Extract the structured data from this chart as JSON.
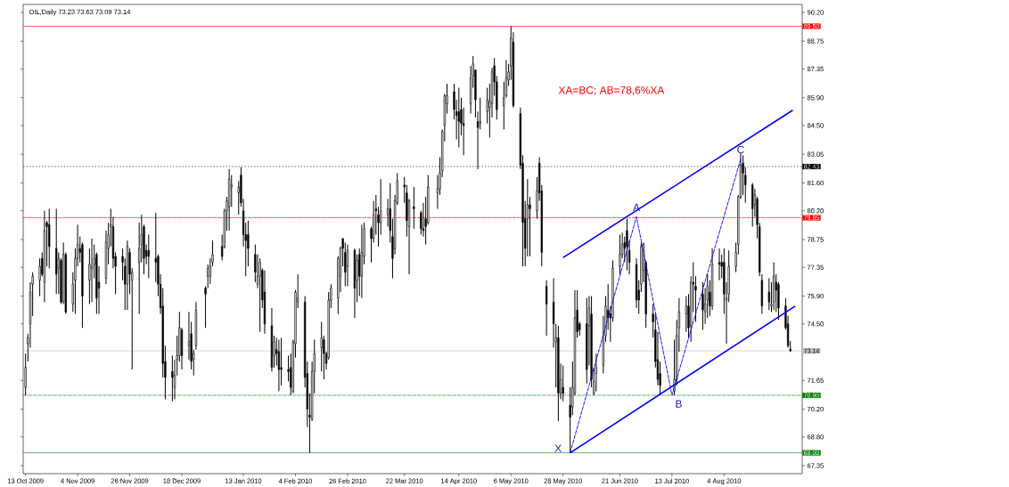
{
  "chart_data": {
    "type": "candlestick",
    "title": "OIL,Daily 73.23 73.63 73.09 73.14",
    "x": [
      "2009-10-13",
      "2009-10-14",
      "2009-10-15",
      "2009-10-16",
      "2009-10-19",
      "2009-10-20",
      "2009-10-21",
      "2009-10-22",
      "2009-10-23",
      "2009-10-26",
      "2009-10-27",
      "2009-10-28",
      "2009-10-29",
      "2009-10-30",
      "2009-11-02",
      "2009-11-03",
      "2009-11-04",
      "2009-11-05",
      "2009-11-06",
      "2009-11-09",
      "2009-11-10",
      "2009-11-11",
      "2009-11-12",
      "2009-11-13",
      "2009-11-16",
      "2009-11-17",
      "2009-11-18",
      "2009-11-19",
      "2009-11-20",
      "2009-11-23",
      "2009-11-24",
      "2009-11-25",
      "2009-11-26",
      "2009-11-27",
      "2009-11-30",
      "2009-12-01",
      "2009-12-02",
      "2009-12-03",
      "2009-12-04",
      "2009-12-07",
      "2009-12-08",
      "2009-12-09",
      "2009-12-10",
      "2009-12-11",
      "2009-12-14",
      "2009-12-15",
      "2009-12-16",
      "2009-12-17",
      "2009-12-18",
      "2009-12-21",
      "2009-12-22",
      "2009-12-23",
      "2009-12-24",
      "2009-12-28",
      "2009-12-29",
      "2009-12-30",
      "2009-12-31",
      "2010-01-04",
      "2010-01-05",
      "2010-01-06",
      "2010-01-07",
      "2010-01-08",
      "2010-01-11",
      "2010-01-12",
      "2010-01-13",
      "2010-01-14",
      "2010-01-15",
      "2010-01-18",
      "2010-01-19",
      "2010-01-20",
      "2010-01-21",
      "2010-01-22",
      "2010-01-25",
      "2010-01-26",
      "2010-01-27",
      "2010-01-28",
      "2010-01-29",
      "2010-02-01",
      "2010-02-02",
      "2010-02-03",
      "2010-02-04",
      "2010-02-05",
      "2010-02-08",
      "2010-02-09",
      "2010-02-10",
      "2010-02-11",
      "2010-02-12",
      "2010-02-15",
      "2010-02-16",
      "2010-02-17",
      "2010-02-18",
      "2010-02-19",
      "2010-02-22",
      "2010-02-23",
      "2010-02-24",
      "2010-02-25",
      "2010-02-26",
      "2010-03-01",
      "2010-03-02",
      "2010-03-03",
      "2010-03-04",
      "2010-03-05",
      "2010-03-08",
      "2010-03-09",
      "2010-03-10",
      "2010-03-11",
      "2010-03-12",
      "2010-03-15",
      "2010-03-16",
      "2010-03-17",
      "2010-03-18",
      "2010-03-19",
      "2010-03-22",
      "2010-03-23",
      "2010-03-24",
      "2010-03-26",
      "2010-03-29",
      "2010-03-30",
      "2010-03-31",
      "2010-04-01",
      "2010-04-05",
      "2010-04-06",
      "2010-04-07",
      "2010-04-08",
      "2010-04-09",
      "2010-04-12",
      "2010-04-13",
      "2010-04-14",
      "2010-04-15",
      "2010-04-16",
      "2010-04-19",
      "2010-04-20",
      "2010-04-21",
      "2010-04-22",
      "2010-04-23",
      "2010-04-26",
      "2010-04-27",
      "2010-04-28",
      "2010-04-29",
      "2010-04-30",
      "2010-05-03",
      "2010-05-04",
      "2010-05-05",
      "2010-05-06",
      "2010-05-07",
      "2010-05-10",
      "2010-05-11",
      "2010-05-12",
      "2010-05-13",
      "2010-05-14",
      "2010-05-17",
      "2010-05-18",
      "2010-05-19",
      "2010-05-21",
      "2010-05-24",
      "2010-05-25",
      "2010-05-26",
      "2010-05-27",
      "2010-05-28",
      "2010-05-31",
      "2010-06-01",
      "2010-06-02",
      "2010-06-03",
      "2010-06-04",
      "2010-06-07",
      "2010-06-08",
      "2010-06-09",
      "2010-06-10",
      "2010-06-11",
      "2010-06-14",
      "2010-06-15",
      "2010-06-16",
      "2010-06-17",
      "2010-06-18",
      "2010-06-21",
      "2010-06-22",
      "2010-06-23",
      "2010-06-24",
      "2010-06-25",
      "2010-06-28",
      "2010-06-29",
      "2010-06-30",
      "2010-07-01",
      "2010-07-02",
      "2010-07-05",
      "2010-07-06",
      "2010-07-07",
      "2010-07-08",
      "2010-07-14",
      "2010-07-15",
      "2010-07-16",
      "2010-07-19",
      "2010-07-20",
      "2010-07-21",
      "2010-07-22",
      "2010-07-23",
      "2010-07-26",
      "2010-07-27",
      "2010-07-28",
      "2010-07-29",
      "2010-07-30",
      "2010-08-02",
      "2010-08-03",
      "2010-08-04",
      "2010-08-05",
      "2010-08-06",
      "2010-08-09",
      "2010-08-10",
      "2010-08-11",
      "2010-08-12",
      "2010-08-13",
      "2010-08-16",
      "2010-08-17",
      "2010-08-18",
      "2010-08-19",
      "2010-08-20",
      "2010-08-23",
      "2010-08-24",
      "2010-08-25",
      "2010-08-26",
      "2010-08-27",
      "2010-08-30",
      "2010-08-31",
      "2010-09-01"
    ],
    "ohlc": [
      [
        71.3,
        73.0,
        70.9,
        72.3
      ],
      [
        73.5,
        74.0,
        72.6,
        73.8
      ],
      [
        74.5,
        76.6,
        73.3,
        76.1
      ],
      [
        76.5,
        77.1,
        74.9,
        76.9
      ],
      [
        76.7,
        77.8,
        75.9,
        77.4
      ],
      [
        77.8,
        78.1,
        76.9,
        77.0
      ],
      [
        76.6,
        80.2,
        75.6,
        79.2
      ],
      [
        79.6,
        79.7,
        77.4,
        79.4
      ],
      [
        79.5,
        80.3,
        77.3,
        78.4
      ],
      [
        78.3,
        80.3,
        76.0,
        77.0
      ],
      [
        77.3,
        78.1,
        76.0,
        77.8
      ],
      [
        77.7,
        77.8,
        75.5,
        75.6
      ],
      [
        75.6,
        78.6,
        75.5,
        78.0
      ],
      [
        78.0,
        78.1,
        75.0,
        75.1
      ],
      [
        75.5,
        77.1,
        75.1,
        76.5
      ],
      [
        76.7,
        78.3,
        75.0,
        77.8
      ],
      [
        77.8,
        79.5,
        77.4,
        78.5
      ],
      [
        78.3,
        78.9,
        77.6,
        78.1
      ],
      [
        78.5,
        78.6,
        74.3,
        75.9
      ],
      [
        76.7,
        78.3,
        75.5,
        77.5
      ],
      [
        77.3,
        78.8,
        75.6,
        77.4
      ],
      [
        77.5,
        78.5,
        76.8,
        77.8
      ],
      [
        78.0,
        78.1,
        75.0,
        75.8
      ],
      [
        76.6,
        77.4,
        75.0,
        76.3
      ],
      [
        76.8,
        79.2,
        76.5,
        78.6
      ],
      [
        78.3,
        79.6,
        77.5,
        79.0
      ],
      [
        79.4,
        80.3,
        78.4,
        79.5
      ],
      [
        79.4,
        79.9,
        77.3,
        77.8
      ],
      [
        77.9,
        78.1,
        76.0,
        77.4
      ],
      [
        77.9,
        78.3,
        76.7,
        77.6
      ],
      [
        77.4,
        77.8,
        75.2,
        76.5
      ],
      [
        76.5,
        78.7,
        75.2,
        78.4
      ],
      [
        78.1,
        78.3,
        76.0,
        77.0
      ],
      [
        76.7,
        77.3,
        72.2,
        77.1
      ],
      [
        77.6,
        79.6,
        75.0,
        78.3
      ],
      [
        78.5,
        80.0,
        77.6,
        79.0
      ],
      [
        79.4,
        79.5,
        77.0,
        77.8
      ],
      [
        78.2,
        78.5,
        77.5,
        77.9
      ],
      [
        78.2,
        79.0,
        76.8,
        77.9
      ],
      [
        77.8,
        80.1,
        76.6,
        77.6
      ],
      [
        77.9,
        78.0,
        75.9,
        76.5
      ],
      [
        76.5,
        77.0,
        75.0,
        75.3
      ],
      [
        75.4,
        76.3,
        71.8,
        72.5
      ],
      [
        72.6,
        73.4,
        70.7,
        71.8
      ],
      [
        72.1,
        72.9,
        70.6,
        71.8
      ],
      [
        71.3,
        72.7,
        70.7,
        71.9
      ],
      [
        72.7,
        73.9,
        71.9,
        72.9
      ],
      [
        72.9,
        75.1,
        72.6,
        74.3
      ],
      [
        74.2,
        74.3,
        72.2,
        72.9
      ],
      [
        73.4,
        75.1,
        72.7,
        73.6
      ],
      [
        74.0,
        74.6,
        72.2,
        72.6
      ],
      [
        72.7,
        73.2,
        71.9,
        73.0
      ],
      [
        73.4,
        75.6,
        73.2,
        75.2
      ],
      [
        76.3,
        76.4,
        74.3,
        76.0
      ],
      [
        76.9,
        77.5,
        76.3,
        77.3
      ],
      [
        76.9,
        77.8,
        76.5,
        77.4
      ],
      [
        77.6,
        78.7,
        77.4,
        78.0
      ],
      [
        78.4,
        79.0,
        77.7,
        77.9
      ],
      [
        78.4,
        80.3,
        78.3,
        80.2
      ],
      [
        80.2,
        80.9,
        79.2,
        80.7
      ],
      [
        80.4,
        82.3,
        79.2,
        81.8
      ],
      [
        81.4,
        82.0,
        80.4,
        81.5
      ],
      [
        81.1,
        81.7,
        80.0,
        81.4
      ],
      [
        82.0,
        82.4,
        80.4,
        80.6
      ],
      [
        80.2,
        80.8,
        78.4,
        79.0
      ],
      [
        79.0,
        79.6,
        76.9,
        78.7
      ],
      [
        79.0,
        79.7,
        77.4,
        78.3
      ],
      [
        78.0,
        78.5,
        76.6,
        77.1
      ],
      [
        76.5,
        78.0,
        76.3,
        76.9
      ],
      [
        76.9,
        77.8,
        74.1,
        77.6
      ],
      [
        77.2,
        77.3,
        75.3,
        75.7
      ],
      [
        76.1,
        77.2,
        74.0,
        74.5
      ],
      [
        74.4,
        75.3,
        72.1,
        72.3
      ],
      [
        72.9,
        73.9,
        72.3,
        73.6
      ],
      [
        73.2,
        73.8,
        72.4,
        73.0
      ],
      [
        73.1,
        73.7,
        71.1,
        72.2
      ],
      [
        72.3,
        73.8,
        71.4,
        72.2
      ],
      [
        72.2,
        72.9,
        71.6,
        72.1
      ],
      [
        72.3,
        73.0,
        70.9,
        71.3
      ],
      [
        71.1,
        73.7,
        71.0,
        73.6
      ],
      [
        73.5,
        76.2,
        72.8,
        76.1
      ],
      [
        75.6,
        77.0,
        75.3,
        75.8
      ],
      [
        75.6,
        75.9,
        71.3,
        71.8
      ],
      [
        72.0,
        72.6,
        69.3,
        70.2
      ],
      [
        69.9,
        71.0,
        68.0,
        69.8
      ],
      [
        69.7,
        72.6,
        69.6,
        72.1
      ],
      [
        72.1,
        73.7,
        71.0,
        73.0
      ],
      [
        73.3,
        74.6,
        72.1,
        73.8
      ],
      [
        73.7,
        73.9,
        71.7,
        73.0
      ],
      [
        73.0,
        73.1,
        72.2,
        72.5
      ],
      [
        72.8,
        76.1,
        72.7,
        75.7
      ],
      [
        75.7,
        76.5,
        75.3,
        76.3
      ],
      [
        75.8,
        77.9,
        75.0,
        77.8
      ],
      [
        76.9,
        78.4,
        76.1,
        78.3
      ],
      [
        78.8,
        78.8,
        77.4,
        78.3
      ],
      [
        78.1,
        78.6,
        76.4,
        77.1
      ],
      [
        77.4,
        78.5,
        76.4,
        78.2
      ],
      [
        78.2,
        78.3,
        74.8,
        76.3
      ],
      [
        76.7,
        78.0,
        75.6,
        77.7
      ],
      [
        78.0,
        78.3,
        75.9,
        76.9
      ],
      [
        76.9,
        79.5,
        75.8,
        78.1
      ],
      [
        77.9,
        79.6,
        77.5,
        79.3
      ],
      [
        79.3,
        79.4,
        77.6,
        78.8
      ],
      [
        78.8,
        80.7,
        78.6,
        80.0
      ],
      [
        80.3,
        81.0,
        79.0,
        80.2
      ],
      [
        80.0,
        80.4,
        78.4,
        79.6
      ],
      [
        79.6,
        81.8,
        79.0,
        80.2
      ],
      [
        80.0,
        80.8,
        79.4,
        80.3
      ],
      [
        80.3,
        81.6,
        78.6,
        79.2
      ],
      [
        78.9,
        79.8,
        76.8,
        77.8
      ],
      [
        78.3,
        81.0,
        78.0,
        80.7
      ],
      [
        80.6,
        82.1,
        80.5,
        81.7
      ],
      [
        81.5,
        81.9,
        80.6,
        81.4
      ],
      [
        81.1,
        81.5,
        78.9,
        79.7
      ],
      [
        79.4,
        80.8,
        77.0,
        80.7
      ],
      [
        80.4,
        81.4,
        79.3,
        80.3
      ],
      [
        80.1,
        80.2,
        79.0,
        79.3
      ],
      [
        79.3,
        80.6,
        78.9,
        79.2
      ],
      [
        79.8,
        80.9,
        78.5,
        79.4
      ],
      [
        79.6,
        82.0,
        79.5,
        81.4
      ],
      [
        81.1,
        82.0,
        80.3,
        81.3
      ],
      [
        81.3,
        82.9,
        81.0,
        82.1
      ],
      [
        82.2,
        84.3,
        81.9,
        84.2
      ],
      [
        84.5,
        86.1,
        83.7,
        86.0
      ],
      [
        85.6,
        86.6,
        85.1,
        86.0
      ],
      [
        86.2,
        86.6,
        84.8,
        85.3
      ],
      [
        85.2,
        85.8,
        83.8,
        85.0
      ],
      [
        85.2,
        86.4,
        83.4,
        84.7
      ],
      [
        85.3,
        85.9,
        84.0,
        84.6
      ],
      [
        84.6,
        85.4,
        83.0,
        84.5
      ],
      [
        85.6,
        87.5,
        85.1,
        86.9
      ],
      [
        87.0,
        88.0,
        86.4,
        87.6
      ],
      [
        87.3,
        87.3,
        84.9,
        85.8
      ],
      [
        84.7,
        85.2,
        82.3,
        84.4
      ],
      [
        84.6,
        85.9,
        84.3,
        84.7
      ],
      [
        85.2,
        86.4,
        84.6,
        85.8
      ],
      [
        85.4,
        86.6,
        83.9,
        85.7
      ],
      [
        85.6,
        87.4,
        84.9,
        87.2
      ],
      [
        87.5,
        87.9,
        86.0,
        86.7
      ],
      [
        86.7,
        87.0,
        84.8,
        85.3
      ],
      [
        85.5,
        86.7,
        84.3,
        85.9
      ],
      [
        86.0,
        87.8,
        85.9,
        86.9
      ],
      [
        86.8,
        87.6,
        86.5,
        87.2
      ],
      [
        87.5,
        89.5,
        86.8,
        88.9
      ],
      [
        88.7,
        89.2,
        85.4,
        85.5
      ],
      [
        85.1,
        85.4,
        82.3,
        82.5
      ],
      [
        82.6,
        83.0,
        77.4,
        79.6
      ],
      [
        79.8,
        80.7,
        77.4,
        78.3
      ],
      [
        79.8,
        81.8,
        77.9,
        80.5
      ],
      [
        80.5,
        80.9,
        77.9,
        80.3
      ],
      [
        80.2,
        81.9,
        79.8,
        81.2
      ],
      [
        82.6,
        82.9,
        80.7,
        81.1
      ],
      [
        81.2,
        81.5,
        77.4,
        78.1
      ],
      [
        76.4,
        76.7,
        73.9,
        75.5
      ],
      [
        75.6,
        76.8,
        73.3,
        74.5
      ],
      [
        73.6,
        74.5,
        71.3,
        73.8
      ],
      [
        73.8,
        74.4,
        69.6,
        71.0
      ],
      [
        71.0,
        72.5,
        70.7,
        71.7
      ],
      [
        71.3,
        72.4,
        70.6,
        71.0
      ],
      [
        70.4,
        71.3,
        68.0,
        69.8
      ],
      [
        70.3,
        72.6,
        69.9,
        71.3
      ],
      [
        71.0,
        76.2,
        70.9,
        74.8
      ],
      [
        75.2,
        76.2,
        73.8,
        74.1
      ],
      [
        74.5,
        74.6,
        73.9,
        74.2
      ],
      [
        74.5,
        75.8,
        71.5,
        72.2
      ],
      [
        74.4,
        75.9,
        72.4,
        75.3
      ],
      [
        75.0,
        75.9,
        71.3,
        71.7
      ],
      [
        71.0,
        72.3,
        70.9,
        71.6
      ],
      [
        72.0,
        73.0,
        71.1,
        72.3
      ],
      [
        72.4,
        74.9,
        72.0,
        73.8
      ],
      [
        73.9,
        75.9,
        73.6,
        75.4
      ],
      [
        75.2,
        76.5,
        74.2,
        74.8
      ],
      [
        75.0,
        75.4,
        73.6,
        74.8
      ],
      [
        74.8,
        77.7,
        74.6,
        77.3
      ],
      [
        77.4,
        79.0,
        77.0,
        78.0
      ],
      [
        78.0,
        79.1,
        77.8,
        78.5
      ],
      [
        78.6,
        78.9,
        77.6,
        78.3
      ],
      [
        79.2,
        79.8,
        77.2,
        78.4
      ],
      [
        78.2,
        78.7,
        77.0,
        77.6
      ],
      [
        77.5,
        77.8,
        75.3,
        75.7
      ],
      [
        76.2,
        76.7,
        75.0,
        75.7
      ],
      [
        76.5,
        78.6,
        76.1,
        78.4
      ],
      [
        77.2,
        78.6,
        76.6,
        78.5
      ],
      [
        77.6,
        77.7,
        74.3,
        75.0
      ],
      [
        75.0,
        75.5,
        73.8,
        74.6
      ],
      [
        74.2,
        75.0,
        72.3,
        72.6
      ],
      [
        72.7,
        74.1,
        71.4,
        71.7
      ],
      [
        72.0,
        72.6,
        70.9,
        71.4
      ],
      [
        71.1,
        73.7,
        70.9,
        71.7
      ],
      [
        71.7,
        74.7,
        71.4,
        73.9
      ],
      [
        74.3,
        75.8,
        73.1,
        75.1
      ],
      [
        75.0,
        75.9,
        74.1,
        75.4
      ],
      [
        75.4,
        76.0,
        73.8,
        74.3
      ],
      [
        74.4,
        76.9,
        73.6,
        76.6
      ],
      [
        76.6,
        77.6,
        75.1,
        76.5
      ],
      [
        76.4,
        76.9,
        74.6,
        76.2
      ],
      [
        76.0,
        76.6,
        74.2,
        75.2
      ],
      [
        75.1,
        76.3,
        74.5,
        75.5
      ],
      [
        75.7,
        77.0,
        74.8,
        76.4
      ],
      [
        76.1,
        76.7,
        74.9,
        75.4
      ],
      [
        75.4,
        78.3,
        75.2,
        77.5
      ],
      [
        77.6,
        78.3,
        76.7,
        77.5
      ],
      [
        77.6,
        78.0,
        76.8,
        77.4
      ],
      [
        77.6,
        78.3,
        75.0,
        76.0
      ],
      [
        75.7,
        76.6,
        73.5,
        75.8
      ],
      [
        76.0,
        78.2,
        75.6,
        77.4
      ],
      [
        77.4,
        78.6,
        77.1,
        78.1
      ],
      [
        78.5,
        81.0,
        78.0,
        80.9
      ],
      [
        80.9,
        83.1,
        80.8,
        82.5
      ],
      [
        82.6,
        83.0,
        81.0,
        82.1
      ],
      [
        82.0,
        82.4,
        80.6,
        81.5
      ],
      [
        81.5,
        81.6,
        79.4,
        80.3
      ],
      [
        80.5,
        81.3,
        79.9,
        81.0
      ],
      [
        80.8,
        80.9,
        78.8,
        79.5
      ],
      [
        79.4,
        79.6,
        76.9,
        77.1
      ],
      [
        76.7,
        77.0,
        75.0,
        75.4
      ],
      [
        76.1,
        76.8,
        75.2,
        75.6
      ],
      [
        75.4,
        76.6,
        75.1,
        75.5
      ],
      [
        75.6,
        77.6,
        75.2,
        76.9
      ],
      [
        76.6,
        77.0,
        75.1,
        76.2
      ],
      [
        76.5,
        76.6,
        74.7,
        75.3
      ],
      [
        75.4,
        75.8,
        74.2,
        74.3
      ],
      [
        74.5,
        74.9,
        73.3,
        73.4
      ],
      [
        73.23,
        73.63,
        73.09,
        73.14
      ]
    ],
    "series": [
      {
        "type": "line",
        "x": [
          "2010-05-28",
          "2010-09-02"
        ],
        "values": [
          77.84,
          85.27
        ],
        "color": "#0000ff",
        "line_style": "solid"
      },
      {
        "type": "line",
        "x": [
          "2010-05-31",
          "2010-09-03"
        ],
        "values": [
          68.0,
          75.39
        ],
        "color": "#0000ff",
        "line_style": "solid"
      },
      {
        "type": "line",
        "x": [
          "2010-05-31",
          "2010-06-28",
          "2010-07-13",
          "2010-08-11"
        ],
        "values": [
          68.0,
          79.9,
          70.9,
          82.8
        ],
        "color": "#0000ff",
        "line_style": "dashed"
      }
    ],
    "xlim": [
      "2009-10-12",
      "2010-09-06"
    ],
    "xticks": [
      {
        "value": "2009-10-13",
        "label": "13 Oct 2009"
      },
      {
        "value": "2009-11-04",
        "label": "4 Nov 2009"
      },
      {
        "value": "2009-11-26",
        "label": "26 Nov 2009"
      },
      {
        "value": "2009-12-18",
        "label": "18 Dec 2009"
      },
      {
        "value": "2010-01-13",
        "label": "13 Jan 2010"
      },
      {
        "value": "2010-02-04",
        "label": "4 Feb 2010"
      },
      {
        "value": "2010-02-26",
        "label": "26 Feb 2010"
      },
      {
        "value": "2010-03-22",
        "label": "22 Mar 2010"
      },
      {
        "value": "2010-04-14",
        "label": "14 Apr 2010"
      },
      {
        "value": "2010-05-06",
        "label": "6 May 2010"
      },
      {
        "value": "2010-05-28",
        "label": "28 May 2010"
      },
      {
        "value": "2010-06-21",
        "label": "21 Jun 2010"
      },
      {
        "value": "2010-07-13",
        "label": "13 Jul 2010"
      },
      {
        "value": "2010-08-04",
        "label": "4 Aug 2010"
      }
    ],
    "ylim": [
      66.95,
      90.6
    ],
    "yticks": [
      {
        "value": 67.35,
        "label": "67.35"
      },
      {
        "value": 68.8,
        "label": "68.80"
      },
      {
        "value": 70.2,
        "label": "70.20"
      },
      {
        "value": 71.65,
        "label": "71.65"
      },
      {
        "value": 74.5,
        "label": "74.50"
      },
      {
        "value": 75.9,
        "label": "75.90"
      },
      {
        "value": 77.35,
        "label": "77.35"
      },
      {
        "value": 78.75,
        "label": "78.75"
      },
      {
        "value": 80.2,
        "label": "80.20"
      },
      {
        "value": 81.6,
        "label": "81.60"
      },
      {
        "value": 83.05,
        "label": "83.05"
      },
      {
        "value": 84.5,
        "label": "84.50"
      },
      {
        "value": 85.9,
        "label": "85.90"
      },
      {
        "value": 87.35,
        "label": "87.35"
      },
      {
        "value": 88.75,
        "label": "88.75"
      },
      {
        "value": 90.2,
        "label": "90.20"
      }
    ],
    "ref_lines": [
      {
        "axis": "y",
        "value": 89.5,
        "label": "89.50",
        "color": "#ff0000",
        "line_style": "solid"
      },
      {
        "axis": "y",
        "value": 82.43,
        "label": "82.43",
        "color": "#000000",
        "line_style": "dotted"
      },
      {
        "axis": "y",
        "value": 79.85,
        "label": "79.85",
        "color": "#ff0000",
        "line_style": "dashed"
      },
      {
        "axis": "y",
        "value": 73.14,
        "label": "73.14",
        "color": "#c0c0c0",
        "line_style": "solid"
      },
      {
        "axis": "y",
        "value": 70.9,
        "label": "70.90",
        "color": "#008000",
        "line_style": "dashed"
      },
      {
        "axis": "y",
        "value": 68.0,
        "label": "68.00",
        "color": "#008000",
        "line_style": "solid"
      }
    ],
    "annotations": [
      "XA=BC; AB=78,6%XA",
      {
        "text": "X",
        "x": "2010-05-31",
        "y": 68.0
      },
      {
        "text": "A",
        "x": "2010-06-28",
        "y": 79.9
      },
      {
        "text": "B",
        "x": "2010-07-13",
        "y": 70.9
      },
      {
        "text": "C",
        "x": "2010-08-11",
        "y": 82.8
      }
    ]
  }
}
